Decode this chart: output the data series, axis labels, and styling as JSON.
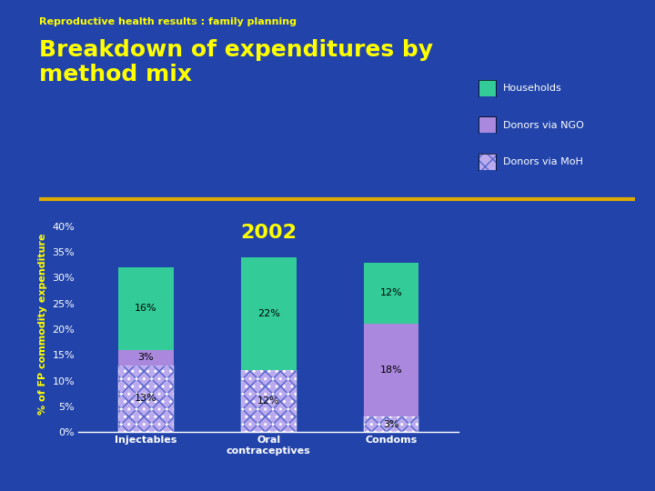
{
  "title_small": "Reproductive health results : family planning",
  "title_large": "Breakdown of expenditures by\nmethod mix",
  "year_label": "2002",
  "categories": [
    "Injectables",
    "Oral\ncontraceptives",
    "Condoms"
  ],
  "segments": {
    "Donors via MoH": [
      13,
      12,
      3
    ],
    "Donors via NGO": [
      3,
      0,
      18
    ],
    "Households": [
      16,
      22,
      12
    ]
  },
  "segment_colors": {
    "Donors via MoH_bg": "#5566CC",
    "Donors via MoH_fg": "#BBAAEE",
    "Donors via NGO": "#AA88DD",
    "Households": "#33CC99"
  },
  "bar_labels": {
    "Donors via MoH": [
      "13%",
      "12%",
      "3%"
    ],
    "Donors via NGO": [
      "3%",
      "",
      "18%"
    ],
    "Households": [
      "16%",
      "22%",
      "12%"
    ]
  },
  "ylabel": "% of FP commodity expenditure",
  "yticks": [
    0,
    5,
    10,
    15,
    20,
    25,
    30,
    35,
    40
  ],
  "ytick_labels": [
    "0%",
    "5%",
    "10%",
    "15%",
    "20%",
    "25%",
    "30%",
    "35%",
    "40%"
  ],
  "ylim": [
    0,
    42
  ],
  "bg_color": "#2244AA",
  "title_small_color": "#FFFF00",
  "title_large_color": "#FFFF00",
  "axis_label_color": "#FFFF00",
  "tick_color": "#FFFFFF",
  "bar_width": 0.45,
  "legend_labels": [
    "Households",
    "Donors via NGO",
    "Donors via MoH"
  ],
  "legend_colors": [
    "#33CC99",
    "#AA88DD",
    "#5566CC"
  ],
  "separator_color": "#DDAA00",
  "year_color": "#FFFF00",
  "label_font_size": 8,
  "ytick_font_size": 8,
  "xtick_font_size": 8
}
